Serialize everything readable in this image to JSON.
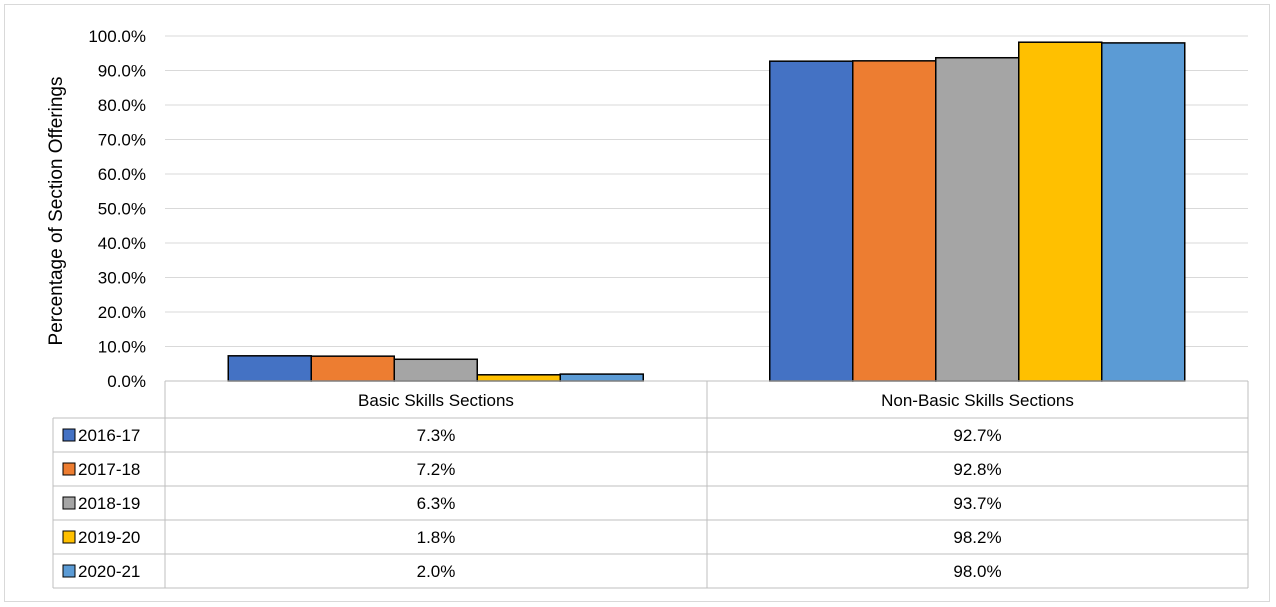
{
  "chart_data": {
    "type": "bar",
    "title": "",
    "xlabel": "",
    "ylabel": "Percentage of Section Offerings",
    "ylim": [
      0,
      100
    ],
    "y_ticks": [
      "0.0%",
      "10.0%",
      "20.0%",
      "30.0%",
      "40.0%",
      "50.0%",
      "60.0%",
      "70.0%",
      "80.0%",
      "90.0%",
      "100.0%"
    ],
    "grid": true,
    "legend": "data-table",
    "categories": [
      "Basic Skills Sections",
      "Non-Basic Skills Sections"
    ],
    "series": [
      {
        "name": "2016-17",
        "color": "#4472C4",
        "values": [
          7.3,
          92.7
        ],
        "labels": [
          "7.3%",
          "92.7%"
        ]
      },
      {
        "name": "2017-18",
        "color": "#ED7D31",
        "values": [
          7.2,
          92.8
        ],
        "labels": [
          "7.2%",
          "92.8%"
        ]
      },
      {
        "name": "2018-19",
        "color": "#A5A5A5",
        "values": [
          6.3,
          93.7
        ],
        "labels": [
          "6.3%",
          "93.7%"
        ]
      },
      {
        "name": "2019-20",
        "color": "#FFC000",
        "values": [
          1.8,
          98.2
        ],
        "labels": [
          "1.8%",
          "98.2%"
        ]
      },
      {
        "name": "2020-21",
        "color": "#5B9BD5",
        "values": [
          2.0,
          98.0
        ],
        "labels": [
          "2.0%",
          "98.0%"
        ]
      }
    ]
  }
}
